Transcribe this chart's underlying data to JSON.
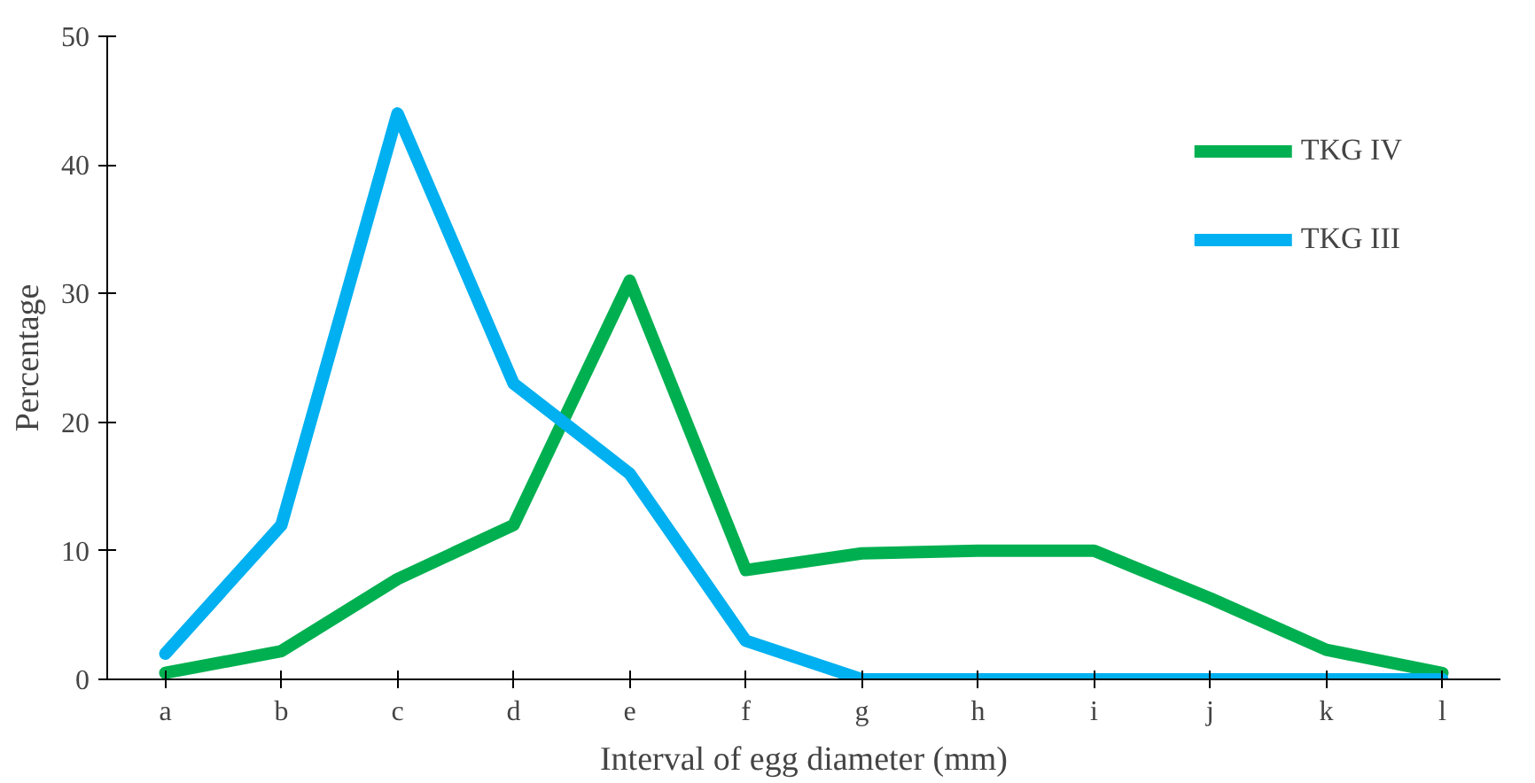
{
  "chart_data": {
    "type": "line",
    "xlabel": "Interval of egg diameter (mm)",
    "ylabel": "Percentage",
    "categories": [
      "a",
      "b",
      "c",
      "d",
      "e",
      "f",
      "g",
      "h",
      "i",
      "j",
      "k",
      "l"
    ],
    "series": [
      {
        "name": "TKG IV",
        "color": "#00b050",
        "values": [
          0.5,
          2.2,
          7.8,
          12,
          31,
          8.5,
          9.8,
          10,
          10,
          6.3,
          2.3,
          0.5
        ]
      },
      {
        "name": "TKG III",
        "color": "#00b0f0",
        "values": [
          2,
          12,
          44,
          23,
          16,
          3,
          0,
          0,
          0,
          0,
          0,
          0
        ]
      }
    ],
    "ylim": [
      0,
      50
    ],
    "yticks": [
      0,
      10,
      20,
      30,
      40,
      50
    ],
    "grid": false,
    "legend": "top right",
    "line_style": "solid",
    "marker": "none"
  }
}
